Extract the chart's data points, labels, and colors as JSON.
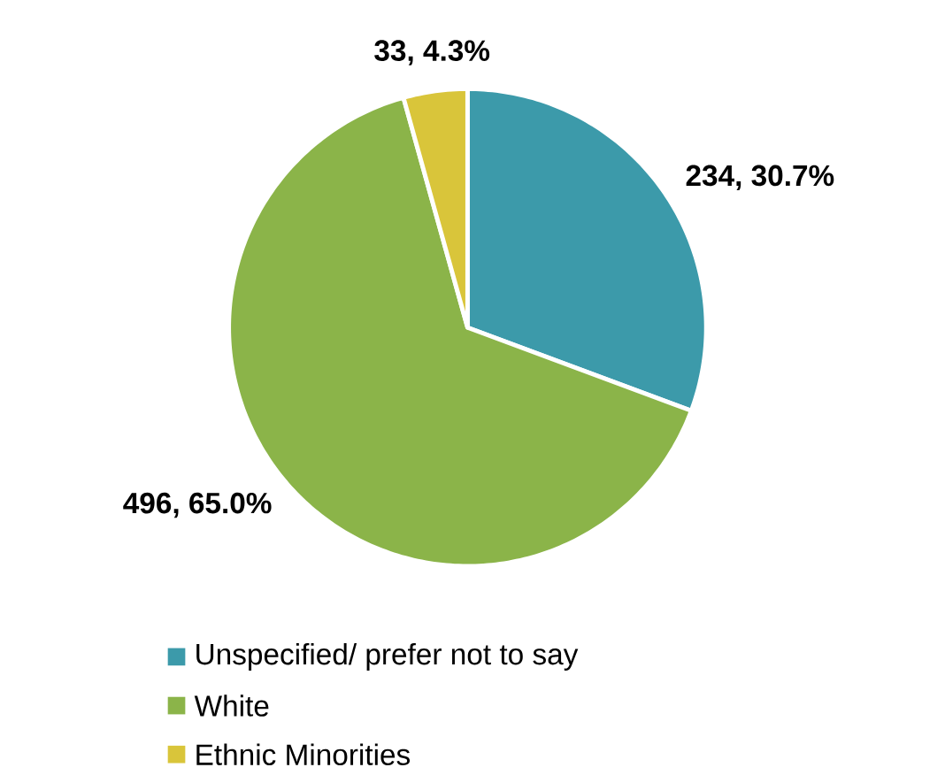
{
  "chart_data": {
    "type": "pie",
    "categories": [
      "Unspecified/ prefer not to say",
      "White",
      "Ethnic Minorities"
    ],
    "values": [
      234,
      496,
      33
    ],
    "colors": [
      "#3c9aaa",
      "#8bb449",
      "#d9c53a"
    ],
    "value_labels": [
      "234, 30.7%",
      "496, 65.0%",
      "33, 4.3%"
    ],
    "legend": "bottom"
  }
}
